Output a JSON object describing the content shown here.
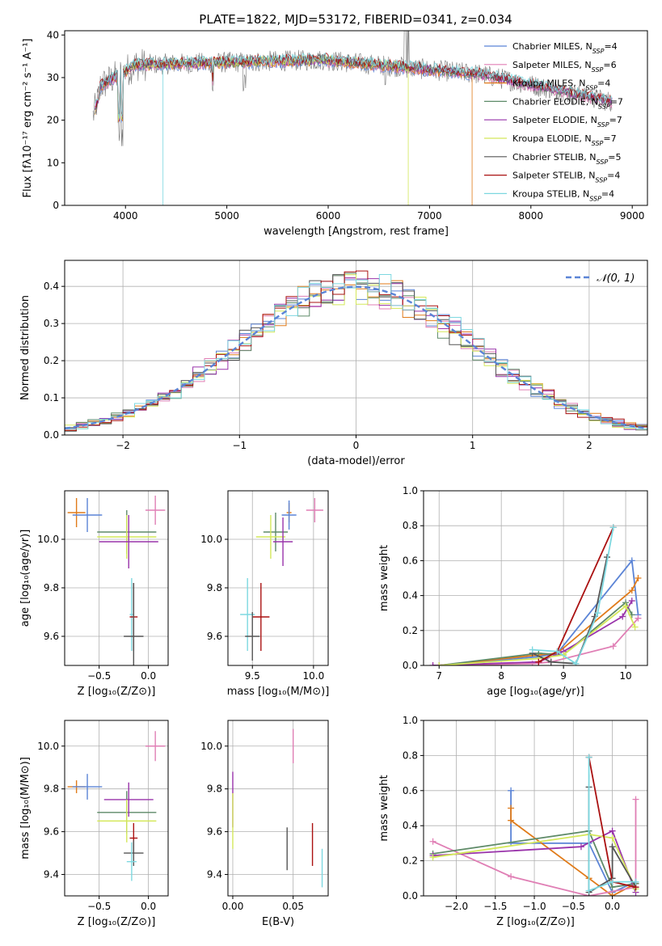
{
  "title": "PLATE=1822, MJD=53172, FIBERID=0341, z=0.034",
  "colors": {
    "Chabrier MILES": "#5b84d6",
    "Salpeter MILES": "#e07fb5",
    "Kroupa MILES": "#e07b1a",
    "Chabrier ELODIE": "#5e8a68",
    "Salpeter ELODIE": "#9933aa",
    "Kroupa ELODIE": "#d4e85a",
    "Chabrier STELIB": "#555555",
    "Salpeter STELIB": "#aa1111",
    "Kroupa STELIB": "#7dd8e0"
  },
  "chart_data": [
    {
      "id": "spectrum",
      "type": "line",
      "xlabel": "wavelength [Angstrom, rest frame]",
      "ylabel": "Flux [fλ10⁻¹⁷ erg cm⁻² s⁻¹ A⁻¹]",
      "xlim": [
        3400,
        9150
      ],
      "ylim": [
        0,
        41
      ],
      "xticks": [
        4000,
        5000,
        6000,
        7000,
        8000,
        9000
      ],
      "yticks": [
        0,
        10,
        20,
        30,
        40
      ],
      "legend": "top-right",
      "legend_entries": [
        {
          "text": "Chabrier MILES, N",
          "sub": "SSP",
          "tail": "=4",
          "model": "Chabrier MILES"
        },
        {
          "text": "Salpeter MILES, N",
          "sub": "SSP",
          "tail": "=6",
          "model": "Salpeter MILES"
        },
        {
          "text": "Kroupa MILES, N",
          "sub": "SSP",
          "tail": "=4",
          "model": "Kroupa MILES"
        },
        {
          "text": "Chabrier ELODIE, N",
          "sub": "SSP",
          "tail": "=7",
          "model": "Chabrier ELODIE"
        },
        {
          "text": "Salpeter ELODIE, N",
          "sub": "SSP",
          "tail": "=7",
          "model": "Salpeter ELODIE"
        },
        {
          "text": "Kroupa ELODIE, N",
          "sub": "SSP",
          "tail": "=7",
          "model": "Kroupa ELODIE"
        },
        {
          "text": "Chabrier STELIB, N",
          "sub": "SSP",
          "tail": "=5",
          "model": "Chabrier STELIB"
        },
        {
          "text": "Salpeter STELIB, N",
          "sub": "SSP",
          "tail": "=4",
          "model": "Salpeter STELIB"
        },
        {
          "text": "Kroupa STELIB, N",
          "sub": "SSP",
          "tail": "=4",
          "model": "Kroupa STELIB"
        }
      ],
      "data_spectrum": {
        "color": "#777777",
        "x_range": [
          3680,
          8800
        ]
      },
      "model_coverage": [
        {
          "model": "Chabrier MILES",
          "x_range": [
            3700,
            7420
          ]
        },
        {
          "model": "Kroupa MILES",
          "x_range": [
            3700,
            7420
          ],
          "drop_at": 7420
        },
        {
          "model": "Kroupa ELODIE",
          "x_range": [
            3900,
            6800
          ],
          "drop_at": 6790
        },
        {
          "model": "Kroupa STELIB",
          "x_range": [
            3700,
            8800
          ],
          "drop_at": 4370
        }
      ]
    },
    {
      "id": "residuals",
      "type": "line",
      "xlabel": "(data-model)/error",
      "ylabel": "Normed distribution",
      "xlim": [
        -2.5,
        2.5
      ],
      "ylim": [
        0,
        0.47
      ],
      "xticks": [
        -2,
        -1,
        0,
        1,
        2
      ],
      "yticks": [
        0.0,
        0.1,
        0.2,
        0.3,
        0.4
      ],
      "xticklabels": [
        "−2",
        "−1",
        "0",
        "1",
        "2"
      ],
      "yticklabels": [
        "0.0",
        "0.1",
        "0.2",
        "0.3",
        "0.4"
      ],
      "grid": true,
      "legend": "top-right",
      "legend_entry": "𝒩(0, 1)",
      "curve": {
        "name": "𝒩(0, 1)",
        "color": "#5b84d6",
        "style": "dashed",
        "mu": 0,
        "sigma": 1
      },
      "bin_width": 0.1
    },
    {
      "id": "age-vs-Z",
      "type": "scatter",
      "xlabel": "Z [log₁₀(Z/Z⊙)]",
      "ylabel": "age  [log₁₀(age/yr)]",
      "xlim": [
        -0.85,
        0.2
      ],
      "ylim": [
        9.48,
        10.2
      ],
      "xticks": [
        -0.5,
        0.0
      ],
      "yticks": [
        9.6,
        9.8,
        10.0
      ],
      "xticklabels": [
        "−0.5",
        "0.0"
      ],
      "yticklabels": [
        "9.6",
        "9.8",
        "10.0"
      ],
      "grid": true,
      "points": [
        {
          "model": "Kroupa MILES",
          "x": -0.73,
          "y": 10.11,
          "xerr": 0.09,
          "yerr": 0.06
        },
        {
          "model": "Chabrier MILES",
          "x": -0.62,
          "y": 10.1,
          "xerr": 0.15,
          "yerr": 0.07
        },
        {
          "model": "Salpeter MILES",
          "x": 0.07,
          "y": 10.12,
          "xerr": 0.1,
          "yerr": 0.06
        },
        {
          "model": "Chabrier ELODIE",
          "x": -0.22,
          "y": 10.03,
          "xerr": 0.3,
          "yerr": 0.09
        },
        {
          "model": "Kroupa ELODIE",
          "x": -0.22,
          "y": 10.01,
          "xerr": 0.3,
          "yerr": 0.09
        },
        {
          "model": "Salpeter ELODIE",
          "x": -0.2,
          "y": 9.99,
          "xerr": 0.3,
          "yerr": 0.11
        },
        {
          "model": "Kroupa STELIB",
          "x": -0.17,
          "y": 9.69,
          "xerr": 0.02,
          "yerr": 0.15
        },
        {
          "model": "Salpeter STELIB",
          "x": -0.15,
          "y": 9.68,
          "xerr": 0.04,
          "yerr": 0.14
        },
        {
          "model": "Chabrier STELIB",
          "x": -0.15,
          "y": 9.6,
          "xerr": 0.1,
          "yerr": 0.22
        }
      ]
    },
    {
      "id": "age-vs-mass",
      "type": "scatter",
      "xlabel": "mass [log₁₀(M/M⊙)]",
      "ylabel": "",
      "xlim": [
        9.3,
        10.12
      ],
      "ylim": [
        9.48,
        10.2
      ],
      "xticks": [
        9.5,
        10.0
      ],
      "yticks": [
        9.6,
        9.8,
        10.0
      ],
      "xticklabels": [
        "9.5",
        "10.0"
      ],
      "yticklabels": [
        "9.6",
        "9.8",
        "10.0"
      ],
      "grid": true,
      "points": [
        {
          "model": "Kroupa MILES",
          "x": 9.8,
          "y": 10.11,
          "xerr": 0.02,
          "yerr": 0.04
        },
        {
          "model": "Chabrier MILES",
          "x": 9.8,
          "y": 10.1,
          "xerr": 0.06,
          "yerr": 0.06
        },
        {
          "model": "Salpeter MILES",
          "x": 10.01,
          "y": 10.12,
          "xerr": 0.07,
          "yerr": 0.05
        },
        {
          "model": "Chabrier ELODIE",
          "x": 9.69,
          "y": 10.03,
          "xerr": 0.1,
          "yerr": 0.08
        },
        {
          "model": "Kroupa ELODIE",
          "x": 9.65,
          "y": 10.01,
          "xerr": 0.12,
          "yerr": 0.09
        },
        {
          "model": "Salpeter ELODIE",
          "x": 9.75,
          "y": 9.99,
          "xerr": 0.08,
          "yerr": 0.1
        },
        {
          "model": "Kroupa STELIB",
          "x": 9.46,
          "y": 9.69,
          "xerr": 0.06,
          "yerr": 0.15
        },
        {
          "model": "Salpeter STELIB",
          "x": 9.57,
          "y": 9.68,
          "xerr": 0.07,
          "yerr": 0.14
        },
        {
          "model": "Chabrier STELIB",
          "x": 9.5,
          "y": 9.6,
          "xerr": 0.06,
          "yerr": 0.1
        }
      ]
    },
    {
      "id": "weight-vs-age",
      "type": "line",
      "xlabel": "age  [log₁₀(age/yr)]",
      "ylabel": "mass weight",
      "xlim": [
        6.75,
        10.35
      ],
      "ylim": [
        0,
        1
      ],
      "xticks": [
        7,
        8,
        9,
        10
      ],
      "yticks": [
        0.0,
        0.2,
        0.4,
        0.6,
        0.8,
        1.0
      ],
      "xticklabels": [
        "7",
        "8",
        "9",
        "10"
      ],
      "yticklabels": [
        "0.0",
        "0.2",
        "0.4",
        "0.6",
        "0.8",
        "1.0"
      ],
      "grid": true,
      "series": [
        {
          "model": "Chabrier MILES",
          "x": [
            7.0,
            8.6,
            8.9,
            10.1,
            10.2
          ],
          "y": [
            0.0,
            0.05,
            0.07,
            0.6,
            0.29
          ]
        },
        {
          "model": "Kroupa MILES",
          "x": [
            7.0,
            8.6,
            8.9,
            10.1,
            10.2
          ],
          "y": [
            0.0,
            0.06,
            0.07,
            0.43,
            0.5
          ]
        },
        {
          "model": "Salpeter MILES",
          "x": [
            6.9,
            8.5,
            8.8,
            9.8,
            10.2
          ],
          "y": [
            0.0,
            0.01,
            0.02,
            0.11,
            0.27
          ]
        },
        {
          "model": "Chabrier ELODIE",
          "x": [
            7.0,
            8.6,
            9.0,
            10.0,
            10.1
          ],
          "y": [
            0.0,
            0.07,
            0.06,
            0.36,
            0.29
          ]
        },
        {
          "model": "Salpeter ELODIE",
          "x": [
            6.9,
            8.6,
            9.0,
            9.95,
            10.1
          ],
          "y": [
            0.0,
            0.02,
            0.08,
            0.28,
            0.37
          ]
        },
        {
          "model": "Kroupa ELODIE",
          "x": [
            7.0,
            8.6,
            9.0,
            10.0,
            10.15
          ],
          "y": [
            0.0,
            0.04,
            0.06,
            0.34,
            0.22
          ]
        },
        {
          "model": "Chabrier STELIB",
          "x": [
            8.5,
            8.8,
            9.2,
            9.5,
            9.7
          ],
          "y": [
            0.07,
            0.02,
            0.01,
            0.28,
            0.62
          ]
        },
        {
          "model": "Salpeter STELIB",
          "x": [
            8.6,
            8.9,
            9.8
          ],
          "y": [
            0.02,
            0.08,
            0.79
          ]
        },
        {
          "model": "Kroupa STELIB",
          "x": [
            8.5,
            8.9,
            9.2,
            9.55,
            9.8
          ],
          "y": [
            0.09,
            0.08,
            0.01,
            0.3,
            0.79
          ]
        }
      ]
    },
    {
      "id": "mass-vs-Z",
      "type": "scatter",
      "xlabel": "Z [log₁₀(Z/Z⊙)]",
      "ylabel": "mass [log₁₀(M/M⊙)]",
      "xlim": [
        -0.85,
        0.2
      ],
      "ylim": [
        9.3,
        10.12
      ],
      "xticks": [
        -0.5,
        0.0
      ],
      "yticks": [
        9.4,
        9.6,
        9.8,
        10.0
      ],
      "xticklabels": [
        "−0.5",
        "0.0"
      ],
      "yticklabels": [
        "9.4",
        "9.6",
        "9.8",
        "10.0"
      ],
      "grid": true,
      "points": [
        {
          "model": "Kroupa MILES",
          "x": -0.73,
          "y": 9.81,
          "xerr": 0.09,
          "yerr": 0.03
        },
        {
          "model": "Chabrier MILES",
          "x": -0.62,
          "y": 9.81,
          "xerr": 0.15,
          "yerr": 0.06
        },
        {
          "model": "Salpeter MILES",
          "x": 0.07,
          "y": 10.0,
          "xerr": 0.1,
          "yerr": 0.07
        },
        {
          "model": "Chabrier ELODIE",
          "x": -0.22,
          "y": 9.69,
          "xerr": 0.3,
          "yerr": 0.1
        },
        {
          "model": "Salpeter ELODIE",
          "x": -0.2,
          "y": 9.75,
          "xerr": 0.25,
          "yerr": 0.08
        },
        {
          "model": "Kroupa ELODIE",
          "x": -0.22,
          "y": 9.65,
          "xerr": 0.3,
          "yerr": 0.1
        },
        {
          "model": "Salpeter STELIB",
          "x": -0.15,
          "y": 9.57,
          "xerr": 0.04,
          "yerr": 0.07
        },
        {
          "model": "Chabrier STELIB",
          "x": -0.15,
          "y": 9.5,
          "xerr": 0.1,
          "yerr": 0.06
        },
        {
          "model": "Kroupa STELIB",
          "x": -0.17,
          "y": 9.46,
          "xerr": 0.05,
          "yerr": 0.09
        }
      ]
    },
    {
      "id": "mass-vs-ebv",
      "type": "scatter",
      "xlabel": "E(B-V)",
      "ylabel": "",
      "xlim": [
        -0.004,
        0.079
      ],
      "ylim": [
        9.3,
        10.12
      ],
      "xticks": [
        0.0,
        0.05
      ],
      "yticks": [
        9.4,
        9.6,
        9.8,
        10.0
      ],
      "xticklabels": [
        "0.00",
        "0.05"
      ],
      "yticklabels": [
        "9.4",
        "9.6",
        "9.8",
        "10.0"
      ],
      "grid": true,
      "points": [
        {
          "model": "Salpeter ELODIE",
          "x": 0.0,
          "y": 9.75,
          "xerr": 0,
          "yerr": 0.13
        },
        {
          "model": "Kroupa ELODIE",
          "x": 0.0,
          "y": 9.65,
          "xerr": 0,
          "yerr": 0.13
        },
        {
          "model": "Chabrier STELIB",
          "x": 0.045,
          "y": 9.52,
          "xerr": 0,
          "yerr": 0.1
        },
        {
          "model": "Salpeter MILES",
          "x": 0.05,
          "y": 10.0,
          "xerr": 0,
          "yerr": 0.08
        },
        {
          "model": "Salpeter STELIB",
          "x": 0.066,
          "y": 9.54,
          "xerr": 0,
          "yerr": 0.1
        },
        {
          "model": "Kroupa STELIB",
          "x": 0.074,
          "y": 9.43,
          "xerr": 0,
          "yerr": 0.09
        }
      ]
    },
    {
      "id": "weight-vs-Z",
      "type": "line",
      "xlabel": "Z [log₁₀(Z/Z⊙)]",
      "ylabel": "mass weight",
      "xlim": [
        -2.42,
        0.45
      ],
      "ylim": [
        0,
        1
      ],
      "xticks": [
        -2.0,
        -1.5,
        -1.0,
        -0.5,
        0.0
      ],
      "yticks": [
        0.0,
        0.2,
        0.4,
        0.6,
        0.8,
        1.0
      ],
      "xticklabels": [
        "−2.0",
        "−1.5",
        "−1.0",
        "−0.5",
        "0.0"
      ],
      "yticklabels": [
        "0.0",
        "0.2",
        "0.4",
        "0.6",
        "0.8",
        "1.0"
      ],
      "grid": true,
      "series": [
        {
          "model": "Chabrier MILES",
          "x": [
            -1.3,
            -1.3,
            -0.3,
            0.0,
            0.3
          ],
          "y": [
            0.6,
            0.3,
            0.3,
            0.02,
            0.08
          ]
        },
        {
          "model": "Kroupa MILES",
          "x": [
            -1.3,
            -1.3,
            -0.3,
            0.0,
            0.3
          ],
          "y": [
            0.5,
            0.43,
            0.1,
            0.0,
            0.07
          ]
        },
        {
          "model": "Salpeter MILES",
          "x": [
            -2.3,
            -1.3,
            -0.3,
            0.3,
            0.3
          ],
          "y": [
            0.31,
            0.11,
            0.0,
            0.05,
            0.55
          ]
        },
        {
          "model": "Chabrier ELODIE",
          "x": [
            -2.3,
            -0.3,
            0.0,
            0.3
          ],
          "y": [
            0.24,
            0.37,
            0.05,
            0.07
          ]
        },
        {
          "model": "Salpeter ELODIE",
          "x": [
            -2.3,
            -0.4,
            0.0,
            0.3
          ],
          "y": [
            0.23,
            0.28,
            0.37,
            0.02
          ]
        },
        {
          "model": "Kroupa ELODIE",
          "x": [
            -2.3,
            -0.3,
            0.0,
            0.3
          ],
          "y": [
            0.22,
            0.35,
            0.33,
            0.04
          ]
        },
        {
          "model": "Chabrier STELIB",
          "x": [
            -0.3,
            -0.3,
            0.0,
            0.0,
            0.3
          ],
          "y": [
            0.62,
            0.02,
            0.1,
            0.28,
            0.05
          ]
        },
        {
          "model": "Salpeter STELIB",
          "x": [
            -0.3,
            0.0,
            0.3
          ],
          "y": [
            0.79,
            0.08,
            0.05
          ]
        },
        {
          "model": "Kroupa STELIB",
          "x": [
            -0.3,
            -0.3,
            0.0,
            0.3
          ],
          "y": [
            0.79,
            0.03,
            0.08,
            0.08
          ]
        }
      ]
    }
  ]
}
